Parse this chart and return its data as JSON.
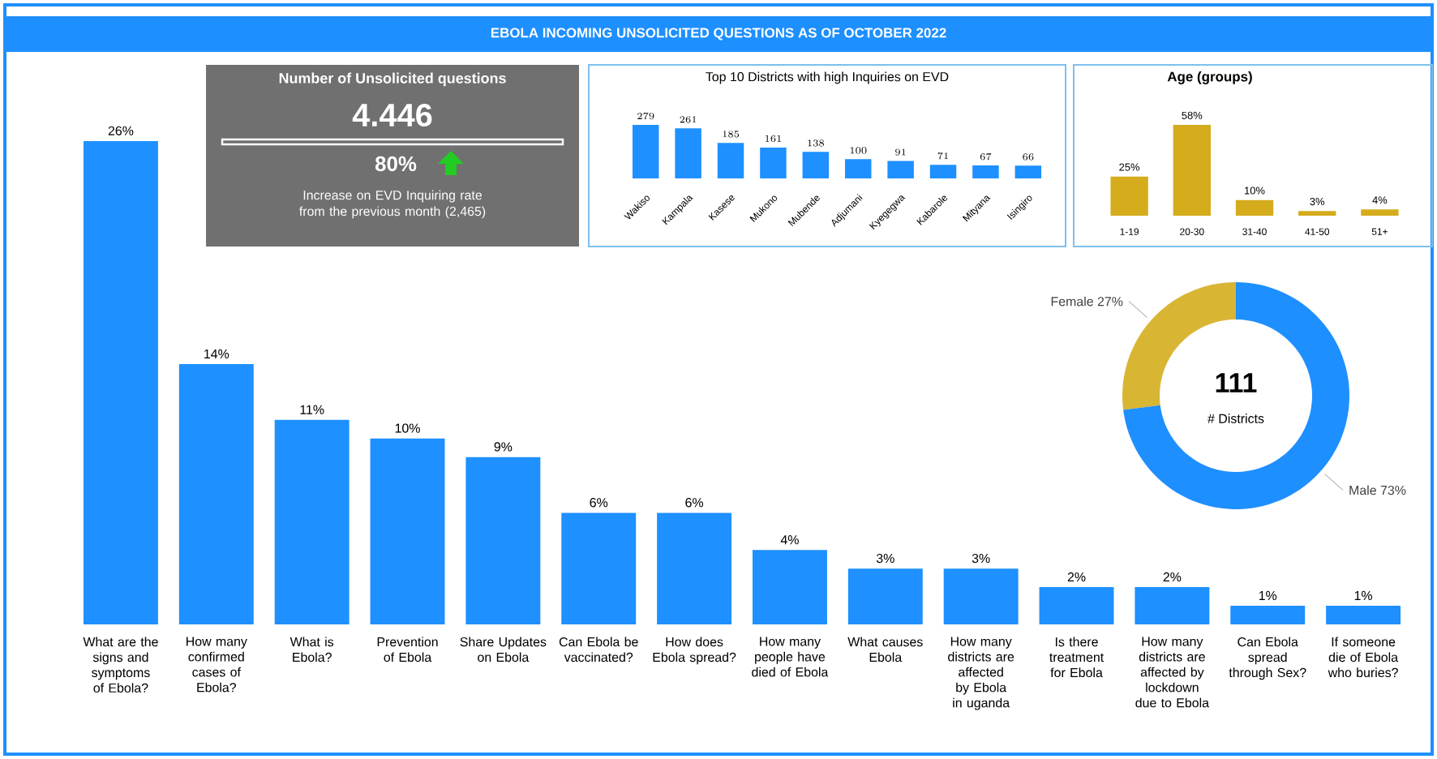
{
  "chart_data": [
    {
      "type": "bar",
      "title": "EBOLA INCOMING UNSOLICITED QUESTIONS AS OF OCTOBER 2022",
      "categories": [
        "What are the signs and symptoms of Ebola?",
        "How many confirmed cases of Ebola?",
        "What is Ebola?",
        "Prevention of Ebola",
        "Share Updates on Ebola",
        "Can Ebola be vaccinated?",
        "How does Ebola spread?",
        "How many people have died of Ebola",
        "What causes Ebola",
        "How many districts are affected by Ebola in uganda",
        "Is there treatment for Ebola",
        "How many districts are affected by lockdown due to Ebola",
        "Can Ebola spread through Sex?",
        "If someone die of Ebola who buries?"
      ],
      "values": [
        26,
        14,
        11,
        10,
        9,
        6,
        6,
        4,
        3,
        3,
        2,
        2,
        1,
        1
      ],
      "value_labels": [
        "26%",
        "14%",
        "11%",
        "10%",
        "9%",
        "6%",
        "6%",
        "4%",
        "3%",
        "3%",
        "2%",
        "2%",
        "1%",
        "1%"
      ],
      "color": "#1e90ff"
    },
    {
      "type": "other",
      "title": "Number of Unsolicited questions",
      "annotations": [
        "4.446",
        "80%",
        "Increase on EVD Inquiring rate from the previous month (2,465)"
      ]
    },
    {
      "type": "bar",
      "title": "Top 10 Districts with high Inquiries on EVD",
      "categories": [
        "Wakiso",
        "Kampala",
        "Kasese",
        "Mukono",
        "Mubende",
        "Adjumani",
        "Kyegegwa",
        "Kabarole",
        "Mityana",
        "Isingiro"
      ],
      "values": [
        279,
        261,
        185,
        161,
        138,
        100,
        91,
        71,
        67,
        66
      ],
      "data_labels": true,
      "color": "#1e90ff"
    },
    {
      "type": "bar",
      "title": "Age (groups)",
      "categories": [
        "1-19",
        "20-30",
        "31-40",
        "41-50",
        "51+"
      ],
      "values": [
        25,
        58,
        10,
        3,
        4
      ],
      "value_labels": [
        "25%",
        "58%",
        "10%",
        "3%",
        "4%"
      ],
      "color": "#d4ac1c"
    },
    {
      "type": "donut",
      "categories": [
        "Female",
        "Male"
      ],
      "values": [
        27,
        73
      ],
      "value_labels": [
        "27%",
        "73%"
      ],
      "colors": [
        "#d9b534",
        "#1e8fff"
      ],
      "annotations": [
        "111",
        "# Districts"
      ]
    }
  ]
}
